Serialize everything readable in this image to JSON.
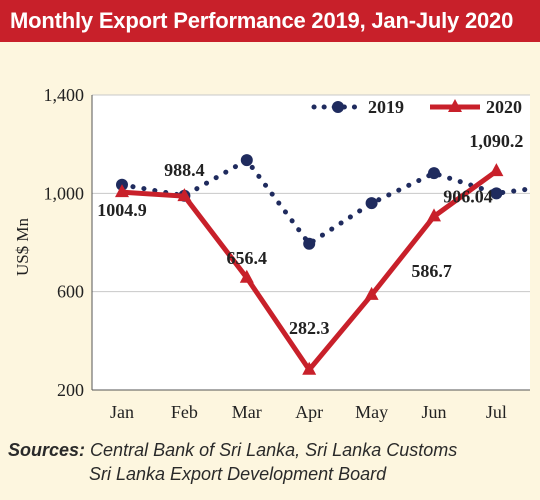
{
  "title": "Monthly Export Performance 2019, Jan-July 2020",
  "sources": {
    "label": "Sources:",
    "line1": "Central Bank of Sri Lanka, Sri Lanka Customs",
    "line2": "Sri Lanka Export Development Board"
  },
  "chart_data": {
    "type": "line",
    "ylabel": "US$ Mn",
    "ylim": [
      200,
      1400
    ],
    "yticks": [
      200,
      600,
      1000,
      1400
    ],
    "ytick_labels": [
      "200",
      "600",
      "1,000",
      "1,400"
    ],
    "categories": [
      "Jan",
      "Feb",
      "Mar",
      "Apr",
      "May",
      "Jun",
      "Jul"
    ],
    "grid": true,
    "legend_position": "top-right",
    "series": [
      {
        "name": "2019",
        "style": "dotted",
        "color": "#1f2b5e",
        "values": [
          1035,
          990,
          1135,
          795,
          960,
          1082,
          1000
        ]
      },
      {
        "name": "2020",
        "style": "solid",
        "color": "#c8202a",
        "values": [
          1004.9,
          988.4,
          656.4,
          282.3,
          586.7,
          906.04,
          1090.2
        ]
      }
    ],
    "data_labels": [
      "1004.9",
      "988.4",
      "656.4",
      "282.3",
      "586.7",
      "906.04",
      "1,090.2"
    ]
  }
}
